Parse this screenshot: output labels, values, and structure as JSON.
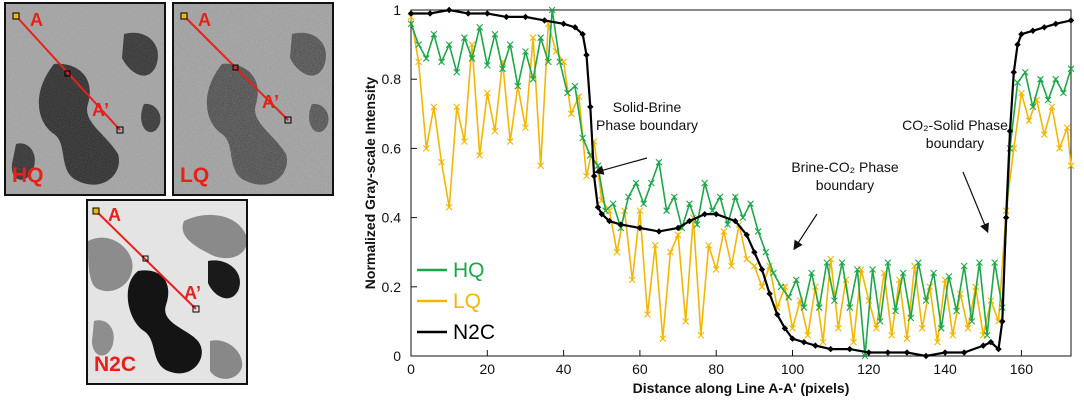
{
  "panels": [
    {
      "id": "hq",
      "label": "HQ",
      "point_a": "A",
      "point_a_prime": "A’"
    },
    {
      "id": "lq",
      "label": "LQ",
      "point_a": "A",
      "point_a_prime": "A’"
    },
    {
      "id": "n2c",
      "label": "N2C",
      "point_a": "A",
      "point_a_prime": "A’"
    }
  ],
  "colors": {
    "hq": "#1ea64a",
    "lq": "#f2b705",
    "n2c": "#000000",
    "line": "#e8201a"
  },
  "chart_data": {
    "type": "line",
    "title": "",
    "xlabel": "Distance along Line A-A' (pixels)",
    "ylabel": "Normalized Gray-scale Intensity",
    "xlim": [
      0,
      173
    ],
    "ylim": [
      0,
      1.0
    ],
    "xticks": [
      0,
      20,
      40,
      60,
      80,
      100,
      120,
      140,
      160
    ],
    "yticks": [
      0,
      0.2,
      0.4,
      0.6,
      0.8,
      1
    ],
    "legend": {
      "position": "bottom-left",
      "entries": [
        "HQ",
        "LQ",
        "N2C"
      ]
    },
    "series": [
      {
        "name": "HQ",
        "marker": "x",
        "points": [
          [
            0,
            0.96
          ],
          [
            2,
            0.9
          ],
          [
            4,
            0.86
          ],
          [
            6,
            0.93
          ],
          [
            8,
            0.85
          ],
          [
            10,
            0.9
          ],
          [
            12,
            0.82
          ],
          [
            14,
            0.92
          ],
          [
            16,
            0.86
          ],
          [
            18,
            0.95
          ],
          [
            20,
            0.84
          ],
          [
            22,
            0.93
          ],
          [
            24,
            0.83
          ],
          [
            26,
            0.9
          ],
          [
            28,
            0.78
          ],
          [
            30,
            0.88
          ],
          [
            32,
            0.8
          ],
          [
            34,
            0.92
          ],
          [
            36,
            0.85
          ],
          [
            37,
            1.0
          ],
          [
            39,
            0.85
          ],
          [
            41,
            0.76
          ],
          [
            43,
            0.78
          ],
          [
            45,
            0.63
          ],
          [
            47,
            0.58
          ],
          [
            49,
            0.55
          ],
          [
            51,
            0.42
          ],
          [
            53,
            0.44
          ],
          [
            55,
            0.37
          ],
          [
            57,
            0.46
          ],
          [
            59,
            0.5
          ],
          [
            61,
            0.44
          ],
          [
            63,
            0.5
          ],
          [
            65,
            0.56
          ],
          [
            67,
            0.42
          ],
          [
            69,
            0.46
          ],
          [
            71,
            0.37
          ],
          [
            73,
            0.44
          ],
          [
            75,
            0.38
          ],
          [
            77,
            0.5
          ],
          [
            79,
            0.42
          ],
          [
            81,
            0.46
          ],
          [
            83,
            0.38
          ],
          [
            85,
            0.46
          ],
          [
            87,
            0.4
          ],
          [
            89,
            0.44
          ],
          [
            91,
            0.36
          ],
          [
            93,
            0.3
          ],
          [
            95,
            0.24
          ],
          [
            97,
            0.2
          ],
          [
            99,
            0.17
          ],
          [
            101,
            0.22
          ],
          [
            103,
            0.14
          ],
          [
            105,
            0.24
          ],
          [
            107,
            0.14
          ],
          [
            109,
            0.27
          ],
          [
            111,
            0.16
          ],
          [
            113,
            0.27
          ],
          [
            115,
            0.14
          ],
          [
            117,
            0.25
          ],
          [
            119,
            0.0
          ],
          [
            121,
            0.25
          ],
          [
            123,
            0.1
          ],
          [
            125,
            0.27
          ],
          [
            127,
            0.13
          ],
          [
            129,
            0.24
          ],
          [
            131,
            0.11
          ],
          [
            133,
            0.27
          ],
          [
            135,
            0.16
          ],
          [
            137,
            0.24
          ],
          [
            139,
            0.08
          ],
          [
            141,
            0.23
          ],
          [
            143,
            0.13
          ],
          [
            145,
            0.26
          ],
          [
            147,
            0.1
          ],
          [
            149,
            0.27
          ],
          [
            151,
            0.06
          ],
          [
            153,
            0.27
          ],
          [
            155,
            0.14
          ],
          [
            157,
            0.6
          ],
          [
            159,
            0.79
          ],
          [
            161,
            0.82
          ],
          [
            163,
            0.72
          ],
          [
            165,
            0.8
          ],
          [
            167,
            0.74
          ],
          [
            169,
            0.8
          ],
          [
            171,
            0.76
          ],
          [
            173,
            0.83
          ]
        ]
      },
      {
        "name": "LQ",
        "marker": "x",
        "points": [
          [
            0,
            0.98
          ],
          [
            2,
            0.85
          ],
          [
            4,
            0.6
          ],
          [
            6,
            0.72
          ],
          [
            8,
            0.56
          ],
          [
            10,
            0.43
          ],
          [
            12,
            0.72
          ],
          [
            14,
            0.62
          ],
          [
            16,
            0.9
          ],
          [
            18,
            0.58
          ],
          [
            20,
            0.76
          ],
          [
            22,
            0.65
          ],
          [
            24,
            0.85
          ],
          [
            26,
            0.62
          ],
          [
            28,
            0.78
          ],
          [
            30,
            0.66
          ],
          [
            32,
            0.92
          ],
          [
            34,
            0.55
          ],
          [
            36,
            0.96
          ],
          [
            38,
            0.88
          ],
          [
            40,
            0.85
          ],
          [
            42,
            0.7
          ],
          [
            44,
            0.75
          ],
          [
            46,
            0.52
          ],
          [
            48,
            0.62
          ],
          [
            50,
            0.45
          ],
          [
            52,
            0.42
          ],
          [
            54,
            0.3
          ],
          [
            56,
            0.42
          ],
          [
            58,
            0.22
          ],
          [
            60,
            0.42
          ],
          [
            62,
            0.12
          ],
          [
            64,
            0.32
          ],
          [
            66,
            0.05
          ],
          [
            68,
            0.3
          ],
          [
            70,
            0.35
          ],
          [
            72,
            0.1
          ],
          [
            74,
            0.4
          ],
          [
            76,
            0.06
          ],
          [
            78,
            0.32
          ],
          [
            80,
            0.25
          ],
          [
            82,
            0.36
          ],
          [
            84,
            0.26
          ],
          [
            86,
            0.38
          ],
          [
            88,
            0.28
          ],
          [
            90,
            0.26
          ],
          [
            92,
            0.2
          ],
          [
            94,
            0.26
          ],
          [
            96,
            0.14
          ],
          [
            98,
            0.2
          ],
          [
            100,
            0.08
          ],
          [
            102,
            0.16
          ],
          [
            104,
            0.06
          ],
          [
            106,
            0.2
          ],
          [
            108,
            0.04
          ],
          [
            110,
            0.28
          ],
          [
            112,
            0.08
          ],
          [
            114,
            0.22
          ],
          [
            116,
            0.04
          ],
          [
            118,
            0.25
          ],
          [
            120,
            0.16
          ],
          [
            122,
            0.08
          ],
          [
            124,
            0.24
          ],
          [
            126,
            0.06
          ],
          [
            128,
            0.22
          ],
          [
            130,
            0.05
          ],
          [
            132,
            0.26
          ],
          [
            134,
            0.08
          ],
          [
            136,
            0.2
          ],
          [
            138,
            0.04
          ],
          [
            140,
            0.22
          ],
          [
            142,
            0.06
          ],
          [
            144,
            0.18
          ],
          [
            146,
            0.08
          ],
          [
            148,
            0.2
          ],
          [
            150,
            0.06
          ],
          [
            152,
            0.16
          ],
          [
            154,
            0.1
          ],
          [
            156,
            0.42
          ],
          [
            158,
            0.6
          ],
          [
            160,
            0.76
          ],
          [
            162,
            0.68
          ],
          [
            164,
            0.74
          ],
          [
            166,
            0.64
          ],
          [
            168,
            0.72
          ],
          [
            170,
            0.6
          ],
          [
            172,
            0.66
          ],
          [
            173,
            0.55
          ]
        ]
      },
      {
        "name": "N2C",
        "marker": "diamond",
        "points": [
          [
            0,
            0.99
          ],
          [
            5,
            0.99
          ],
          [
            10,
            1.0
          ],
          [
            15,
            0.99
          ],
          [
            20,
            0.99
          ],
          [
            25,
            0.98
          ],
          [
            30,
            0.98
          ],
          [
            35,
            0.97
          ],
          [
            40,
            0.96
          ],
          [
            43,
            0.95
          ],
          [
            45,
            0.93
          ],
          [
            46,
            0.87
          ],
          [
            47,
            0.72
          ],
          [
            48,
            0.52
          ],
          [
            49,
            0.43
          ],
          [
            50,
            0.41
          ],
          [
            52,
            0.39
          ],
          [
            55,
            0.38
          ],
          [
            60,
            0.37
          ],
          [
            65,
            0.36
          ],
          [
            70,
            0.37
          ],
          [
            73,
            0.39
          ],
          [
            77,
            0.41
          ],
          [
            80,
            0.41
          ],
          [
            85,
            0.39
          ],
          [
            88,
            0.35
          ],
          [
            90,
            0.3
          ],
          [
            92,
            0.25
          ],
          [
            94,
            0.18
          ],
          [
            96,
            0.12
          ],
          [
            98,
            0.08
          ],
          [
            100,
            0.05
          ],
          [
            103,
            0.04
          ],
          [
            106,
            0.03
          ],
          [
            110,
            0.02
          ],
          [
            115,
            0.02
          ],
          [
            120,
            0.01
          ],
          [
            125,
            0.01
          ],
          [
            130,
            0.01
          ],
          [
            135,
            0.0
          ],
          [
            140,
            0.01
          ],
          [
            145,
            0.01
          ],
          [
            150,
            0.03
          ],
          [
            152,
            0.04
          ],
          [
            154,
            0.02
          ],
          [
            155,
            0.1
          ],
          [
            156,
            0.4
          ],
          [
            157,
            0.65
          ],
          [
            158,
            0.82
          ],
          [
            159,
            0.9
          ],
          [
            160,
            0.93
          ],
          [
            163,
            0.94
          ],
          [
            166,
            0.95
          ],
          [
            169,
            0.96
          ],
          [
            173,
            0.97
          ]
        ]
      }
    ],
    "annotations": [
      {
        "lines": [
          "Solid-Brine",
          "Phase boundary"
        ],
        "target": [
          47,
          0.52
        ]
      },
      {
        "lines": [
          "Brine-CO₂ Phase",
          "boundary"
        ],
        "target": [
          99,
          0.3
        ]
      },
      {
        "lines": [
          "CO₂-Solid Phase",
          "boundary"
        ],
        "target": [
          150,
          0.35
        ]
      }
    ]
  }
}
